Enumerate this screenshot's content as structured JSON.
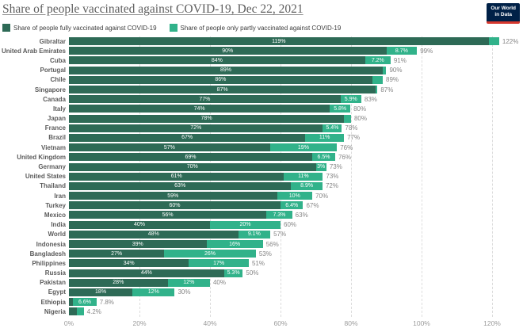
{
  "header": {
    "title": "Share of people vaccinated against COVID-19, Dec 22, 2021",
    "logo_line1": "Our World",
    "logo_line2": "in Data"
  },
  "legend": [
    {
      "label": "Share of people fully vaccinated against COVID-19",
      "color": "#2e6a56"
    },
    {
      "label": "Share of people only partly vaccinated against COVID-19",
      "color": "#31b28a"
    }
  ],
  "colors": {
    "fully": "#2e6a56",
    "partly": "#31b28a",
    "gridline": "#dcdcdc",
    "logo_bg": "#002147",
    "logo_accent": "#d7382e"
  },
  "chart_data": {
    "type": "bar",
    "orientation": "horizontal",
    "stacked": true,
    "title": "Share of people vaccinated against COVID-19, Dec 22, 2021",
    "series_names": [
      "Share of people fully vaccinated against COVID-19",
      "Share of people only partly vaccinated against COVID-19"
    ],
    "x_axis": {
      "ticks": [
        0,
        20,
        40,
        60,
        80,
        100,
        120
      ],
      "tick_labels": [
        "0%",
        "20%",
        "40%",
        "60%",
        "80%",
        "100%",
        "120%"
      ],
      "max": 128
    },
    "grid": true,
    "legend_position": "top",
    "rows": [
      {
        "country": "Gibraltar",
        "fully": 119,
        "partly": 3,
        "fully_label": "119%",
        "partly_label": "",
        "total_label": "122%"
      },
      {
        "country": "United Arab Emirates",
        "fully": 90,
        "partly": 8.7,
        "fully_label": "90%",
        "partly_label": "8.7%",
        "total_label": "99%"
      },
      {
        "country": "Cuba",
        "fully": 84,
        "partly": 7.2,
        "fully_label": "84%",
        "partly_label": "7.2%",
        "total_label": "91%"
      },
      {
        "country": "Portugal",
        "fully": 89,
        "partly": 1,
        "fully_label": "89%",
        "partly_label": "",
        "total_label": "90%"
      },
      {
        "country": "Chile",
        "fully": 86,
        "partly": 3,
        "fully_label": "86%",
        "partly_label": "",
        "total_label": "89%"
      },
      {
        "country": "Singapore",
        "fully": 87,
        "partly": 0.5,
        "fully_label": "87%",
        "partly_label": "",
        "total_label": "87%"
      },
      {
        "country": "Canada",
        "fully": 77,
        "partly": 5.9,
        "fully_label": "77%",
        "partly_label": "5.9%",
        "total_label": "83%"
      },
      {
        "country": "Italy",
        "fully": 74,
        "partly": 5.8,
        "fully_label": "74%",
        "partly_label": "5.8%",
        "total_label": "80%"
      },
      {
        "country": "Japan",
        "fully": 78,
        "partly": 2,
        "fully_label": "78%",
        "partly_label": "",
        "total_label": "80%"
      },
      {
        "country": "France",
        "fully": 72,
        "partly": 5.4,
        "fully_label": "72%",
        "partly_label": "5.4%",
        "total_label": "78%"
      },
      {
        "country": "Brazil",
        "fully": 67,
        "partly": 11,
        "fully_label": "67%",
        "partly_label": "11%",
        "total_label": "77%"
      },
      {
        "country": "Vietnam",
        "fully": 57,
        "partly": 19,
        "fully_label": "57%",
        "partly_label": "19%",
        "total_label": "76%"
      },
      {
        "country": "United Kingdom",
        "fully": 69,
        "partly": 6.5,
        "fully_label": "69%",
        "partly_label": "6.5%",
        "total_label": "76%"
      },
      {
        "country": "Germany",
        "fully": 70,
        "partly": 3,
        "fully_label": "70%",
        "partly_label": "3%",
        "total_label": "73%"
      },
      {
        "country": "United States",
        "fully": 61,
        "partly": 11,
        "fully_label": "61%",
        "partly_label": "11%",
        "total_label": "73%"
      },
      {
        "country": "Thailand",
        "fully": 63,
        "partly": 8.9,
        "fully_label": "63%",
        "partly_label": "8.9%",
        "total_label": "72%"
      },
      {
        "country": "Iran",
        "fully": 59,
        "partly": 10,
        "fully_label": "59%",
        "partly_label": "10%",
        "total_label": "70%"
      },
      {
        "country": "Turkey",
        "fully": 60,
        "partly": 6.4,
        "fully_label": "60%",
        "partly_label": "6.4%",
        "total_label": "67%"
      },
      {
        "country": "Mexico",
        "fully": 56,
        "partly": 7.3,
        "fully_label": "56%",
        "partly_label": "7.3%",
        "total_label": "63%"
      },
      {
        "country": "India",
        "fully": 40,
        "partly": 20,
        "fully_label": "40%",
        "partly_label": "20%",
        "total_label": "60%"
      },
      {
        "country": "World",
        "fully": 48,
        "partly": 9.1,
        "fully_label": "48%",
        "partly_label": "9.1%",
        "total_label": "57%"
      },
      {
        "country": "Indonesia",
        "fully": 39,
        "partly": 16,
        "fully_label": "39%",
        "partly_label": "16%",
        "total_label": "56%"
      },
      {
        "country": "Bangladesh",
        "fully": 27,
        "partly": 26,
        "fully_label": "27%",
        "partly_label": "26%",
        "total_label": "53%"
      },
      {
        "country": "Philippines",
        "fully": 34,
        "partly": 17,
        "fully_label": "34%",
        "partly_label": "17%",
        "total_label": "51%"
      },
      {
        "country": "Russia",
        "fully": 44,
        "partly": 5.3,
        "fully_label": "44%",
        "partly_label": "5.3%",
        "total_label": "50%"
      },
      {
        "country": "Pakistan",
        "fully": 28,
        "partly": 12,
        "fully_label": "28%",
        "partly_label": "12%",
        "total_label": "40%"
      },
      {
        "country": "Egypt",
        "fully": 18,
        "partly": 12,
        "fully_label": "18%",
        "partly_label": "12%",
        "total_label": "30%"
      },
      {
        "country": "Ethiopia",
        "fully": 1.2,
        "partly": 6.6,
        "fully_label": "",
        "partly_label": "6.6%",
        "total_label": "7.8%"
      },
      {
        "country": "Nigeria",
        "fully": 2.2,
        "partly": 2.0,
        "fully_label": "",
        "partly_label": "",
        "total_label": "4.2%"
      }
    ]
  }
}
